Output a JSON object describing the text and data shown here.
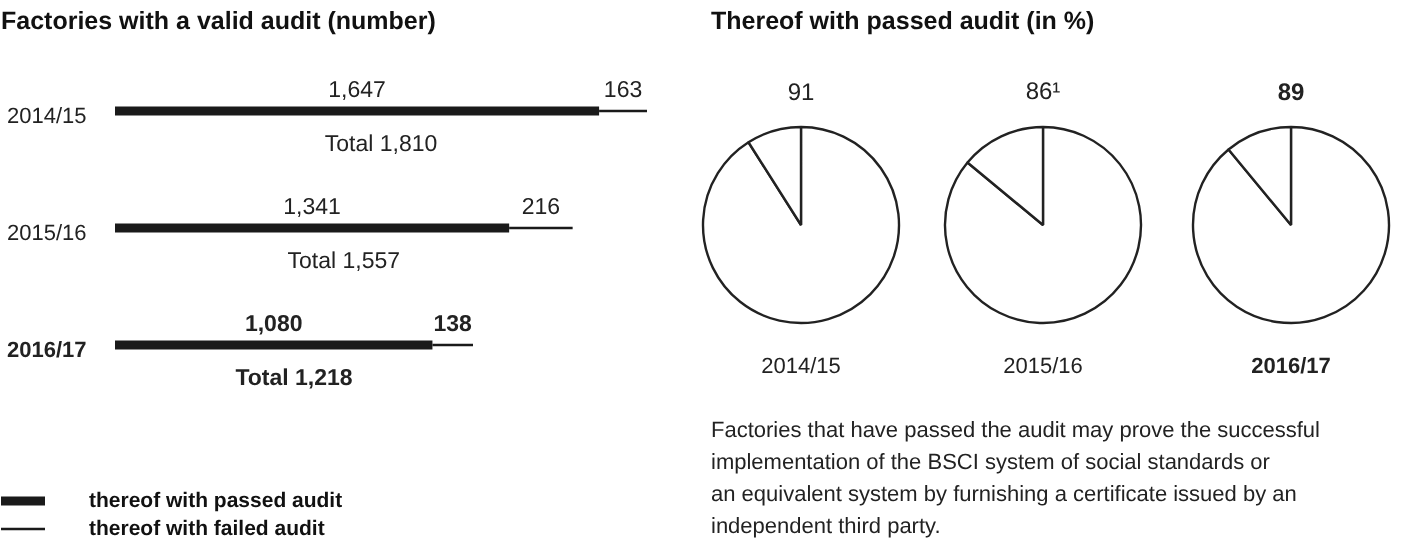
{
  "chart_data": [
    {
      "type": "bar",
      "orientation": "horizontal",
      "stacked": true,
      "title": "Factories with a valid audit (number)",
      "categories": [
        "2014/15",
        "2015/16",
        "2016/17"
      ],
      "legend": "bottom left",
      "series": [
        {
          "name": "thereof with passed audit",
          "color": "#1a1a1a",
          "values": [
            1647,
            1341,
            1080
          ],
          "value_labels": [
            "1,647",
            "1,341",
            "1,080"
          ]
        },
        {
          "name": "thereof with failed audit",
          "color": "#1a1a1a",
          "values": [
            163,
            216,
            138
          ],
          "value_labels": [
            "163",
            "216",
            "138"
          ]
        }
      ],
      "totals": [
        "Total 1,810",
        "Total 1,557",
        "Total 1,218"
      ]
    },
    {
      "type": "pie",
      "title": "Thereof with passed audit (in %)",
      "categories": [
        null,
        null
      ],
      "values": [
        91,
        9
      ],
      "colors": [
        "#ffffff",
        "#ffffff"
      ],
      "value_labels": [
        "91",
        null
      ],
      "xlabel": "2014/15"
    },
    {
      "type": "pie",
      "categories": [
        null,
        null
      ],
      "values": [
        86,
        14
      ],
      "colors": [
        "#ffffff",
        "#ffffff"
      ],
      "value_labels": [
        "86¹",
        null
      ],
      "xlabel": "2015/16"
    },
    {
      "type": "pie",
      "categories": [
        null,
        null
      ],
      "values": [
        89,
        11
      ],
      "colors": [
        "#ffffff",
        "#ffffff"
      ],
      "value_labels": [
        "89",
        null
      ],
      "xlabel": "2016/17",
      "annotations": [
        "Factories that have passed the audit may prove the successful\nimplementation of the BSCI system of social standards or\nan equivalent system by furnishing a certificate issued by an\nindependent third party."
      ]
    }
  ]
}
